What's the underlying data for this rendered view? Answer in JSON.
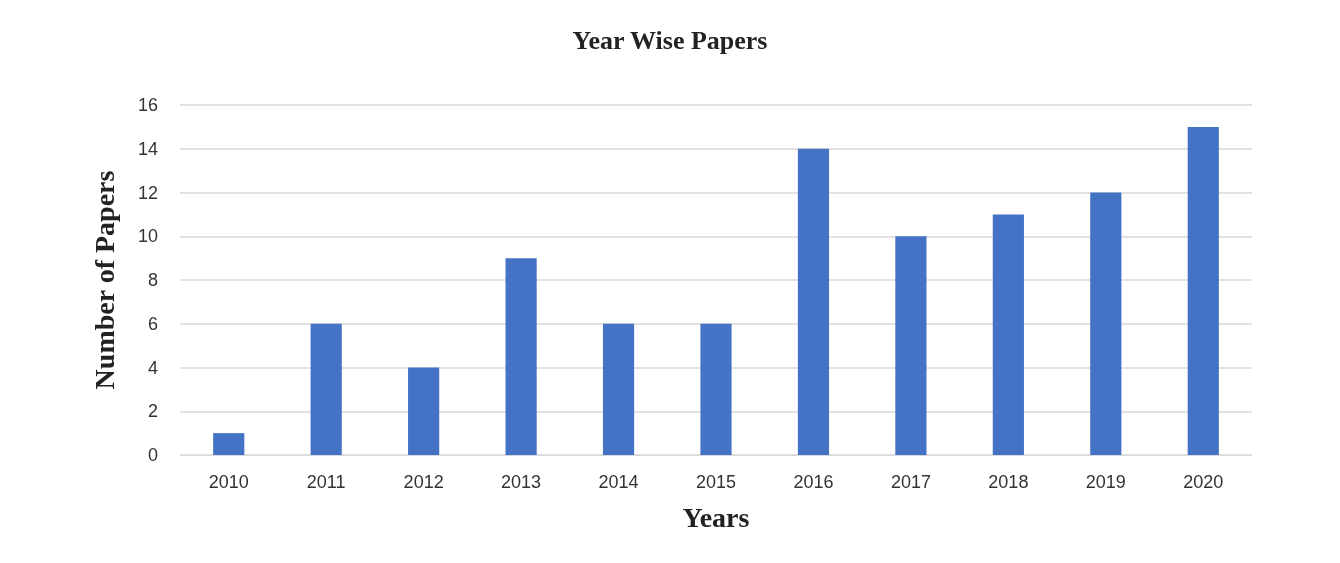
{
  "chart_data": {
    "type": "bar",
    "title": "Year Wise Papers",
    "xlabel": "Years",
    "ylabel": "Number of Papers",
    "categories": [
      "2010",
      "2011",
      "2012",
      "2013",
      "2014",
      "2015",
      "2016",
      "2017",
      "2018",
      "2019",
      "2020"
    ],
    "values": [
      1,
      6,
      4,
      9,
      6,
      6,
      14,
      10,
      11,
      12,
      15
    ],
    "color": "#4472c4",
    "ylim": [
      0,
      16
    ],
    "yticks": [
      0,
      2,
      4,
      6,
      8,
      10,
      12,
      14,
      16
    ],
    "grid": "y"
  }
}
